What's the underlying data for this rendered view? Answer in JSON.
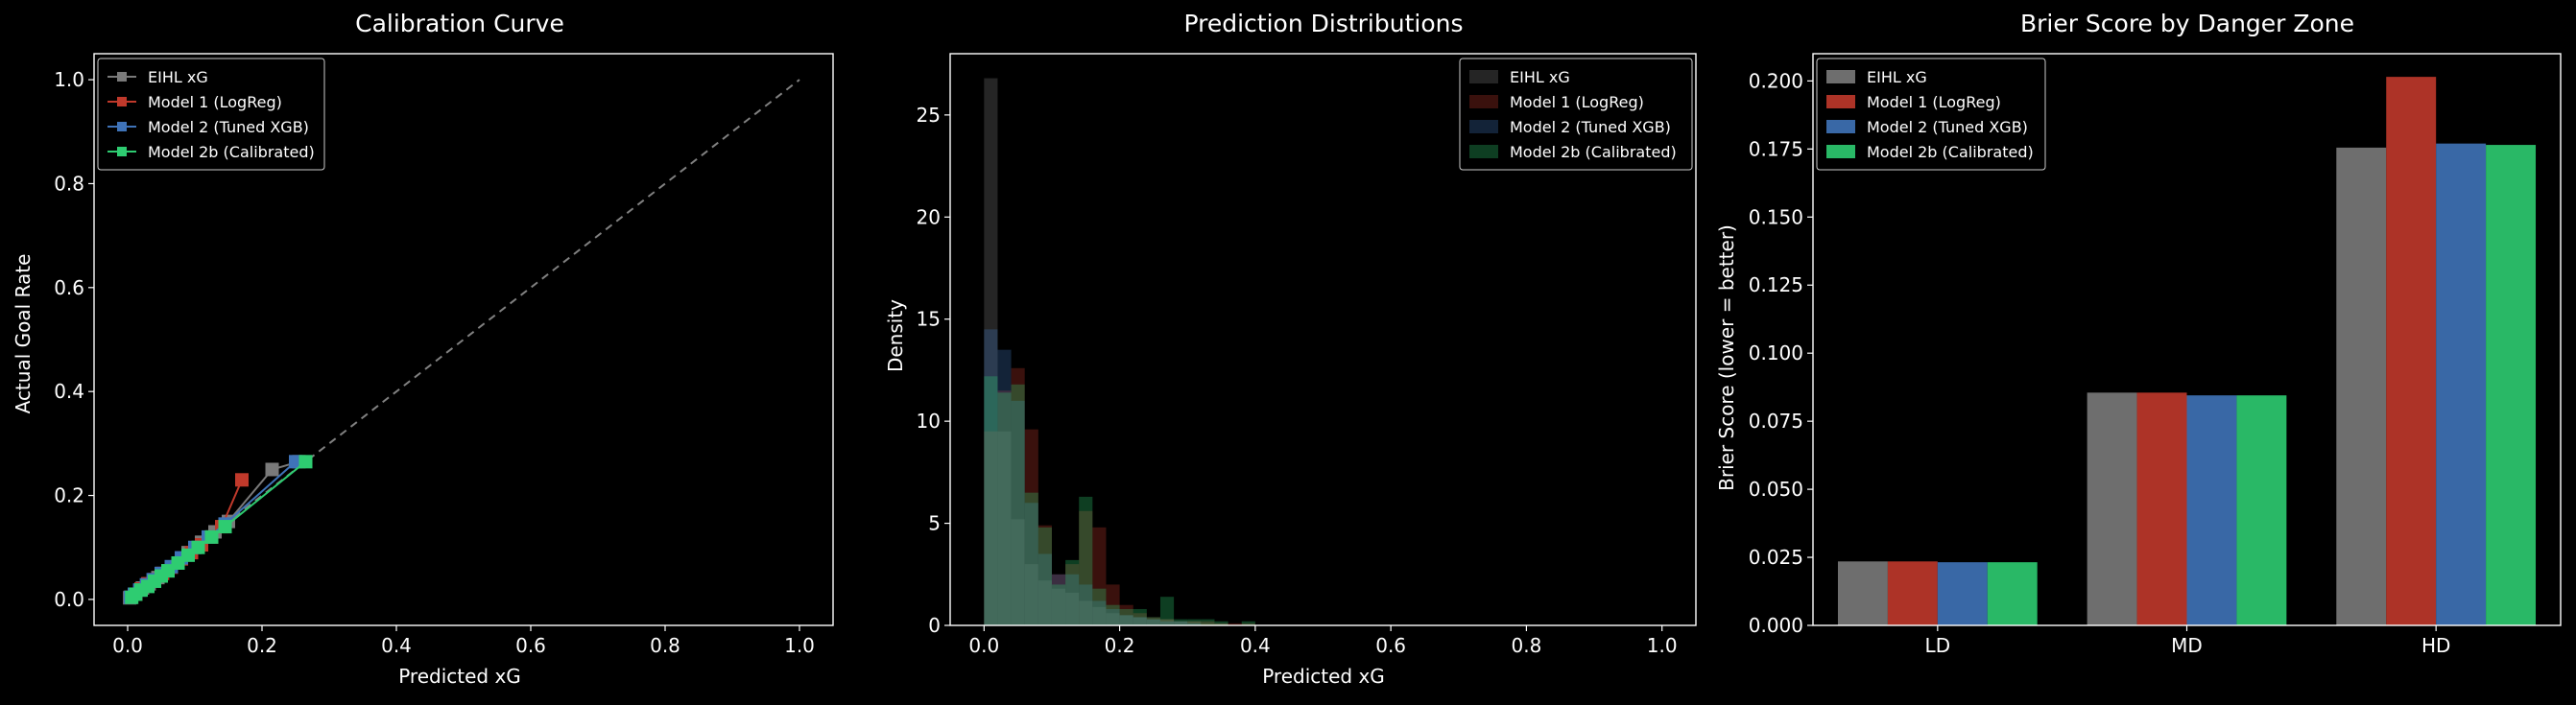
{
  "colors": {
    "background": "#000000",
    "eihl": "#7a7a7a",
    "model1": "#c0392b",
    "model2": "#3f73b8",
    "model2b": "#2ecc71"
  },
  "chart_data": [
    {
      "type": "line",
      "title": "Calibration Curve",
      "xlabel": "Predicted xG",
      "ylabel": "Actual Goal Rate",
      "xlim": [
        -0.05,
        1.05
      ],
      "ylim": [
        -0.05,
        1.05
      ],
      "xticks": [
        "0.0",
        "0.2",
        "0.4",
        "0.6",
        "0.8",
        "1.0"
      ],
      "yticks": [
        "0.0",
        "0.2",
        "0.4",
        "0.6",
        "0.8",
        "1.0"
      ],
      "grid": false,
      "legend": "upper-left",
      "diagonal": true,
      "series": [
        {
          "name": "EIHL xG",
          "color": "#7a7a7a",
          "x": [
            0.003,
            0.012,
            0.022,
            0.032,
            0.045,
            0.06,
            0.075,
            0.09,
            0.11,
            0.13,
            0.15,
            0.215,
            0.255
          ],
          "y": [
            0.003,
            0.01,
            0.022,
            0.03,
            0.042,
            0.055,
            0.07,
            0.09,
            0.11,
            0.13,
            0.15,
            0.25,
            0.265
          ]
        },
        {
          "name": "Model 1 (LogReg)",
          "color": "#c0392b",
          "x": [
            0.004,
            0.012,
            0.02,
            0.03,
            0.04,
            0.052,
            0.065,
            0.08,
            0.095,
            0.11,
            0.125,
            0.14,
            0.17
          ],
          "y": [
            0.004,
            0.01,
            0.02,
            0.03,
            0.038,
            0.05,
            0.062,
            0.078,
            0.09,
            0.105,
            0.12,
            0.14,
            0.23
          ]
        },
        {
          "name": "Model 2 (Tuned XGB)",
          "color": "#3f73b8",
          "x": [
            0.004,
            0.01,
            0.018,
            0.028,
            0.038,
            0.05,
            0.065,
            0.08,
            0.1,
            0.12,
            0.145,
            0.25
          ],
          "y": [
            0.004,
            0.01,
            0.018,
            0.028,
            0.038,
            0.05,
            0.063,
            0.08,
            0.1,
            0.12,
            0.145,
            0.265
          ]
        },
        {
          "name": "Model 2b (Calibrated)",
          "color": "#2ecc71",
          "x": [
            0.006,
            0.012,
            0.02,
            0.03,
            0.04,
            0.05,
            0.06,
            0.075,
            0.09,
            0.105,
            0.125,
            0.145,
            0.265
          ],
          "y": [
            0.004,
            0.01,
            0.018,
            0.025,
            0.035,
            0.045,
            0.055,
            0.07,
            0.085,
            0.1,
            0.12,
            0.14,
            0.265
          ]
        }
      ]
    },
    {
      "type": "bar",
      "title": "Prediction Distributions",
      "xlabel": "Predicted xG",
      "ylabel": "Density",
      "xlim": [
        -0.05,
        1.05
      ],
      "ylim": [
        0,
        28
      ],
      "xticks": [
        "0.0",
        "0.2",
        "0.4",
        "0.6",
        "0.8",
        "1.0"
      ],
      "yticks": [
        "0",
        "5",
        "10",
        "15",
        "20",
        "25"
      ],
      "grid": false,
      "legend": "upper-right",
      "bin_width": 0.02,
      "series": [
        {
          "name": "EIHL xG",
          "color": "#7a7a7a",
          "x": [
            0.01,
            0.03,
            0.05,
            0.07,
            0.09,
            0.11,
            0.13,
            0.15,
            0.17,
            0.19,
            0.21,
            0.23,
            0.25,
            0.27,
            0.29,
            0.31,
            0.33,
            0.35
          ],
          "values": [
            26.8,
            9.5,
            5.2,
            3.0,
            2.2,
            1.8,
            1.6,
            1.2,
            0.9,
            0.6,
            0.5,
            0.4,
            0.3,
            0.3,
            0.2,
            0.2,
            0.1,
            0.1
          ]
        },
        {
          "name": "Model 1 (LogReg)",
          "color": "#c0392b",
          "x": [
            0.01,
            0.03,
            0.05,
            0.07,
            0.09,
            0.11,
            0.13,
            0.15,
            0.17,
            0.19,
            0.21,
            0.23,
            0.25,
            0.27,
            0.29,
            0.31,
            0.33,
            0.35,
            0.37,
            0.39
          ],
          "values": [
            9.5,
            11.5,
            12.6,
            9.6,
            4.9,
            2.5,
            3.0,
            5.6,
            4.8,
            2.0,
            1.0,
            0.6,
            0.4,
            0.3,
            0.2,
            0.2,
            0.2,
            0.1,
            0.1,
            0.1
          ]
        },
        {
          "name": "Model 2 (Tuned XGB)",
          "color": "#3f73b8",
          "x": [
            0.01,
            0.03,
            0.05,
            0.07,
            0.09,
            0.11,
            0.13,
            0.15,
            0.17,
            0.19,
            0.21,
            0.23,
            0.25,
            0.27,
            0.29,
            0.31
          ],
          "values": [
            14.5,
            13.5,
            11.0,
            6.0,
            3.5,
            2.5,
            2.5,
            2.0,
            1.2,
            0.8,
            0.5,
            0.4,
            0.3,
            0.2,
            0.2,
            0.1
          ]
        },
        {
          "name": "Model 2b (Calibrated)",
          "color": "#2ecc71",
          "x": [
            0.01,
            0.03,
            0.05,
            0.07,
            0.09,
            0.11,
            0.13,
            0.15,
            0.17,
            0.19,
            0.21,
            0.23,
            0.25,
            0.27,
            0.29,
            0.31,
            0.33,
            0.35,
            0.39
          ],
          "values": [
            12.2,
            11.4,
            11.8,
            6.5,
            4.8,
            2.0,
            3.2,
            6.3,
            1.8,
            1.0,
            0.8,
            0.8,
            0.4,
            1.4,
            0.3,
            0.3,
            0.3,
            0.2,
            0.2
          ]
        }
      ]
    },
    {
      "type": "bar",
      "title": "Brier Score by Danger Zone",
      "xlabel": "",
      "ylabel": "Brier Score (lower = better)",
      "ylim": [
        0,
        0.21
      ],
      "yticks": [
        "0.000",
        "0.025",
        "0.050",
        "0.075",
        "0.100",
        "0.125",
        "0.150",
        "0.175",
        "0.200"
      ],
      "categories": [
        "LD",
        "MD",
        "HD"
      ],
      "grid": false,
      "legend": "upper-left",
      "series": [
        {
          "name": "EIHL xG",
          "color": "#7a7a7a",
          "values": [
            0.0235,
            0.0855,
            0.1755
          ]
        },
        {
          "name": "Model 1 (LogReg)",
          "color": "#c0392b",
          "values": [
            0.0235,
            0.0855,
            0.2015
          ]
        },
        {
          "name": "Model 2 (Tuned XGB)",
          "color": "#3f73b8",
          "values": [
            0.0232,
            0.0845,
            0.177
          ]
        },
        {
          "name": "Model 2b (Calibrated)",
          "color": "#2ecc71",
          "values": [
            0.0232,
            0.0845,
            0.1765
          ]
        }
      ]
    }
  ]
}
